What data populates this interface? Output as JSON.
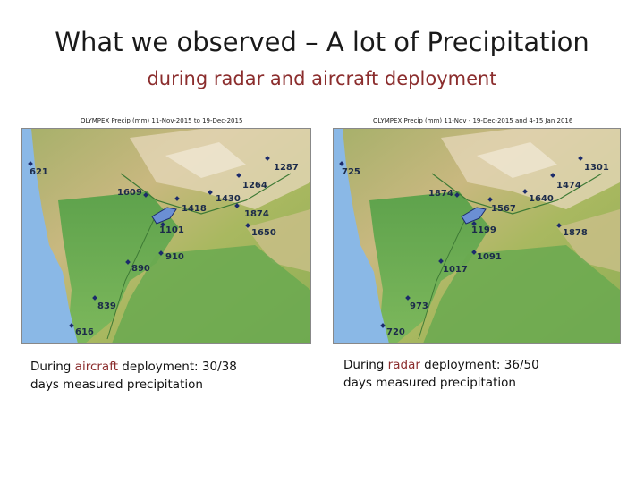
{
  "title": "What we observed – A lot of Precipitation",
  "subtitle": "during radar and aircraft deployment",
  "maps": [
    {
      "title": "OLYMPEX Precip (mm) 11-Nov-2015 to 19-Dec-2015",
      "stations": [
        "621",
        "1609",
        "1418",
        "1430",
        "1264",
        "1287",
        "1874",
        "1101",
        "1650",
        "910",
        "890",
        "839",
        "616"
      ],
      "caption": {
        "before": "During ",
        "highlight": "aircraft",
        "after": " deployment: 30/38",
        "line2": "days measured precipitation"
      }
    },
    {
      "title": "OLYMPEX Precip (mm) 11-Nov - 19-Dec-2015 and 4-15 Jan 2016",
      "stations": [
        "725",
        "1874",
        "1567",
        "1640",
        "1474",
        "1301",
        "1199",
        "1878",
        "1091",
        "1017",
        "973",
        "720"
      ],
      "caption": {
        "before": "During ",
        "highlight": "radar",
        "after": " deployment: 36/50",
        "line2": "days measured precipitation"
      }
    }
  ],
  "colors": {
    "ocean": "#8ab8e6",
    "lake": "#6b8fd4",
    "station": "#1c2b6b",
    "highlight": "#8b2d2d"
  }
}
